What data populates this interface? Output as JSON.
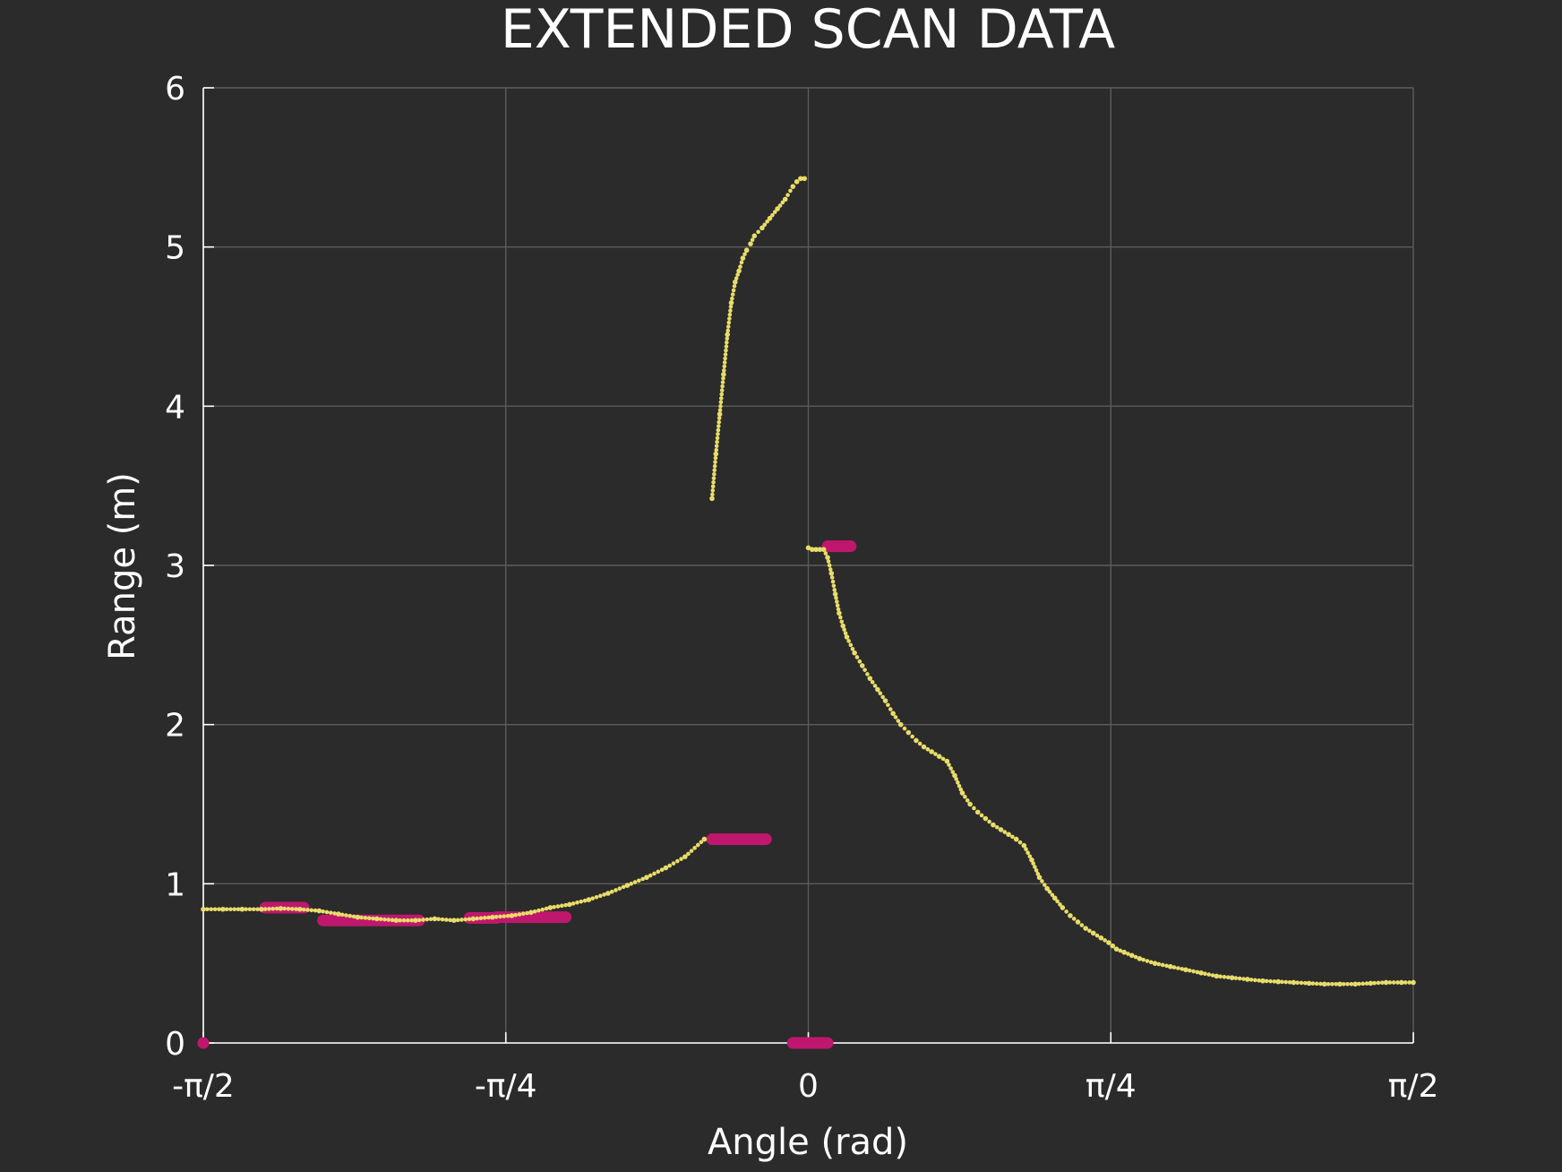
{
  "chart_data": {
    "type": "scatter",
    "title": "EXTENDED SCAN DATA",
    "xlabel": "Angle (rad)",
    "ylabel": "Range (m)",
    "xlim": [
      -1.5708,
      1.5708
    ],
    "ylim": [
      0,
      6
    ],
    "x_ticks": [
      {
        "value": -1.5708,
        "label": "-π/2"
      },
      {
        "value": -0.7854,
        "label": "-π/4"
      },
      {
        "value": 0,
        "label": "0"
      },
      {
        "value": 0.7854,
        "label": "π/4"
      },
      {
        "value": 1.5708,
        "label": "π/2"
      }
    ],
    "y_ticks": [
      {
        "value": 0,
        "label": "0"
      },
      {
        "value": 1,
        "label": "1"
      },
      {
        "value": 2,
        "label": "2"
      },
      {
        "value": 3,
        "label": "3"
      },
      {
        "value": 4,
        "label": "4"
      },
      {
        "value": 5,
        "label": "5"
      },
      {
        "value": 6,
        "label": "6"
      }
    ],
    "grid": true,
    "colors": {
      "background": "#2b2b2b",
      "scan": "#e8dc6a",
      "segments": "#c0176e",
      "grid": "#5c5c5c",
      "axis": "#ffffff"
    },
    "series": [
      {
        "style": "points",
        "color": "#e8dc6a",
        "x": [
          -1.5708,
          -1.52,
          -1.47,
          -1.42,
          -1.37,
          -1.32,
          -1.27,
          -1.22,
          -1.17,
          -1.12,
          -1.07,
          -1.02,
          -0.97,
          -0.92,
          -0.87,
          -0.82,
          -0.77,
          -0.72,
          -0.67,
          -0.62,
          -0.57,
          -0.52,
          -0.47,
          -0.42,
          -0.37,
          -0.32,
          -0.27,
          -0.25,
          -0.24,
          -0.23,
          -0.22,
          -0.21,
          -0.2,
          -0.19,
          -0.18,
          -0.17,
          -0.16,
          -0.15,
          -0.14,
          -0.12,
          -0.1,
          -0.08,
          -0.06,
          -0.04,
          -0.03,
          -0.02,
          -0.01,
          0.0,
          0.01,
          0.02,
          0.03,
          0.04,
          0.05,
          0.06,
          0.07,
          0.08,
          0.09,
          0.1,
          0.12,
          0.14,
          0.16,
          0.18,
          0.2,
          0.22,
          0.24,
          0.26,
          0.28,
          0.3,
          0.32,
          0.34,
          0.36,
          0.38,
          0.4,
          0.42,
          0.44,
          0.46,
          0.48,
          0.5,
          0.52,
          0.54,
          0.56,
          0.58,
          0.6,
          0.62,
          0.64,
          0.66,
          0.68,
          0.7,
          0.72,
          0.74,
          0.76,
          0.78,
          0.79,
          0.8,
          0.82,
          0.84,
          0.86,
          0.9,
          0.94,
          0.98,
          1.02,
          1.06,
          1.1,
          1.14,
          1.18,
          1.22,
          1.26,
          1.3,
          1.34,
          1.38,
          1.42,
          1.46,
          1.5,
          1.54,
          1.5708
        ],
        "y": [
          0.84,
          0.84,
          0.84,
          0.84,
          0.845,
          0.84,
          0.83,
          0.81,
          0.79,
          0.78,
          0.77,
          0.77,
          0.78,
          0.77,
          0.78,
          0.79,
          0.8,
          0.82,
          0.85,
          0.87,
          0.9,
          0.94,
          0.99,
          1.04,
          1.1,
          1.17,
          1.28,
          3.42,
          3.7,
          3.95,
          4.2,
          4.45,
          4.65,
          4.78,
          4.85,
          4.93,
          4.98,
          5.02,
          5.07,
          5.12,
          5.18,
          5.24,
          5.3,
          5.38,
          5.41,
          5.43,
          5.43,
          3.11,
          3.1,
          3.1,
          3.1,
          3.1,
          3.05,
          2.95,
          2.82,
          2.7,
          2.62,
          2.55,
          2.45,
          2.37,
          2.29,
          2.22,
          2.15,
          2.07,
          2.0,
          1.95,
          1.9,
          1.86,
          1.83,
          1.8,
          1.77,
          1.68,
          1.57,
          1.5,
          1.45,
          1.41,
          1.37,
          1.34,
          1.31,
          1.28,
          1.24,
          1.15,
          1.04,
          0.97,
          0.91,
          0.85,
          0.8,
          0.76,
          0.72,
          0.69,
          0.66,
          0.63,
          0.61,
          0.59,
          0.57,
          0.55,
          0.53,
          0.5,
          0.48,
          0.46,
          0.44,
          0.42,
          0.41,
          0.4,
          0.39,
          0.385,
          0.38,
          0.375,
          0.37,
          0.37,
          0.37,
          0.375,
          0.38,
          0.38,
          0.38
        ]
      },
      {
        "style": "segments",
        "color": "#c0176e",
        "segments": [
          {
            "x": [
              -1.5708,
              -1.5708
            ],
            "y": 0.0
          },
          {
            "x": [
              -1.41,
              -1.31
            ],
            "y": 0.85
          },
          {
            "x": [
              -1.26,
              -1.01
            ],
            "y": 0.77
          },
          {
            "x": [
              -0.88,
              -0.81
            ],
            "y": 0.785
          },
          {
            "x": [
              -0.81,
              -0.63
            ],
            "y": 0.79
          },
          {
            "x": [
              -0.25,
              -0.11
            ],
            "y": 1.28
          },
          {
            "x": [
              -0.04,
              0.05
            ],
            "y": 0.0
          },
          {
            "x": [
              0.05,
              0.11
            ],
            "y": 3.12
          }
        ]
      }
    ]
  }
}
